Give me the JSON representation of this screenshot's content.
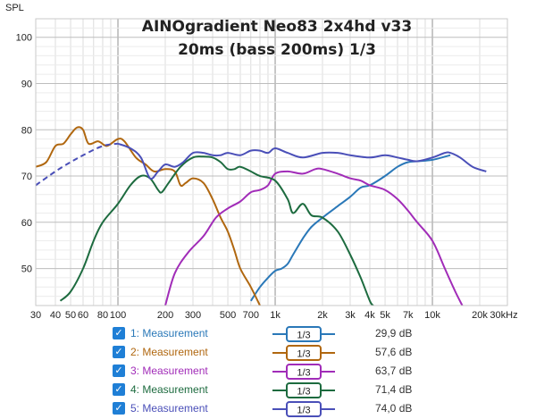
{
  "chart_data": {
    "type": "line",
    "title": "AINOgradient Neo83 2x4hd v33",
    "subtitle": "20ms (bass 200ms) 1/3",
    "ylabel": "SPL",
    "ylim": [
      42,
      104
    ],
    "xlim": [
      30,
      30000
    ],
    "xscale": "log",
    "grid": true,
    "y_ticks": [
      100,
      90,
      80,
      70,
      60,
      50
    ],
    "x_ticks": [
      {
        "v": 30,
        "label": "30"
      },
      {
        "v": 40,
        "label": "40"
      },
      {
        "v": 50,
        "label": "50"
      },
      {
        "v": 60,
        "label": "60"
      },
      {
        "v": 80,
        "label": "80"
      },
      {
        "v": 100,
        "label": "100"
      },
      {
        "v": 200,
        "label": "200"
      },
      {
        "v": 300,
        "label": "300"
      },
      {
        "v": 500,
        "label": "500"
      },
      {
        "v": 700,
        "label": "700"
      },
      {
        "v": 1000,
        "label": "1k"
      },
      {
        "v": 2000,
        "label": "2k"
      },
      {
        "v": 3000,
        "label": "3k"
      },
      {
        "v": 4000,
        "label": "4k"
      },
      {
        "v": 5000,
        "label": "5k"
      },
      {
        "v": 7000,
        "label": "7k"
      },
      {
        "v": 10000,
        "label": "10k"
      },
      {
        "v": 20000,
        "label": "20k"
      },
      {
        "v": 30000,
        "label": "30kHz"
      }
    ],
    "series": [
      {
        "name": "1: Measurement",
        "color": "#2a78b8",
        "smoothing": "1/3",
        "level": "29,9 dB",
        "points": [
          [
            700,
            43
          ],
          [
            800,
            46
          ],
          [
            900,
            48
          ],
          [
            1000,
            49.5
          ],
          [
            1100,
            50
          ],
          [
            1200,
            51
          ],
          [
            1300,
            53
          ],
          [
            1500,
            56.5
          ],
          [
            1700,
            59
          ],
          [
            2000,
            61
          ],
          [
            2500,
            63.5
          ],
          [
            3000,
            65.5
          ],
          [
            3500,
            67.5
          ],
          [
            4000,
            68
          ],
          [
            5000,
            70
          ],
          [
            6000,
            72
          ],
          [
            7000,
            73
          ],
          [
            8000,
            73.2
          ],
          [
            10000,
            73.5
          ],
          [
            13000,
            74.5
          ]
        ]
      },
      {
        "name": "2: Measurement",
        "color": "#b0670f",
        "smoothing": "1/3",
        "level": "57,6 dB",
        "points": [
          [
            30,
            72
          ],
          [
            35,
            73
          ],
          [
            40,
            76.5
          ],
          [
            45,
            77
          ],
          [
            50,
            79
          ],
          [
            55,
            80.5
          ],
          [
            60,
            80
          ],
          [
            65,
            77
          ],
          [
            75,
            77.5
          ],
          [
            85,
            76.5
          ],
          [
            100,
            78
          ],
          [
            110,
            77.5
          ],
          [
            130,
            74
          ],
          [
            150,
            72.5
          ],
          [
            170,
            71
          ],
          [
            200,
            71.5
          ],
          [
            230,
            71
          ],
          [
            250,
            68
          ],
          [
            270,
            68.5
          ],
          [
            300,
            69.5
          ],
          [
            350,
            68.5
          ],
          [
            400,
            65
          ],
          [
            450,
            61
          ],
          [
            500,
            58
          ],
          [
            550,
            54
          ],
          [
            600,
            50
          ],
          [
            700,
            46
          ],
          [
            800,
            42
          ]
        ]
      },
      {
        "name": "3: Measurement",
        "color": "#a12cb8",
        "smoothing": "1/3",
        "level": "63,7 dB",
        "points": [
          [
            200,
            42
          ],
          [
            230,
            49
          ],
          [
            280,
            53.5
          ],
          [
            350,
            57
          ],
          [
            420,
            61
          ],
          [
            500,
            63
          ],
          [
            600,
            64.5
          ],
          [
            700,
            66.5
          ],
          [
            800,
            67
          ],
          [
            900,
            68
          ],
          [
            1000,
            70.5
          ],
          [
            1200,
            71
          ],
          [
            1500,
            70.5
          ],
          [
            1800,
            71.5
          ],
          [
            2000,
            71.5
          ],
          [
            2500,
            70.5
          ],
          [
            3000,
            69.5
          ],
          [
            3500,
            69
          ],
          [
            4000,
            68
          ],
          [
            5000,
            67
          ],
          [
            6000,
            65
          ],
          [
            7000,
            62.5
          ],
          [
            8000,
            60
          ],
          [
            10000,
            56
          ],
          [
            12000,
            50
          ],
          [
            14000,
            45
          ],
          [
            15500,
            42
          ]
        ]
      },
      {
        "name": "4: Measurement",
        "color": "#1d6b3f",
        "smoothing": "1/3",
        "level": "71,4 dB",
        "points": [
          [
            43,
            43
          ],
          [
            50,
            45
          ],
          [
            60,
            50
          ],
          [
            70,
            56
          ],
          [
            80,
            60
          ],
          [
            100,
            64
          ],
          [
            120,
            68
          ],
          [
            140,
            70
          ],
          [
            160,
            69.5
          ],
          [
            180,
            67
          ],
          [
            190,
            66.5
          ],
          [
            210,
            68.5
          ],
          [
            250,
            72
          ],
          [
            300,
            74
          ],
          [
            350,
            74.2
          ],
          [
            400,
            74
          ],
          [
            450,
            73
          ],
          [
            500,
            71.5
          ],
          [
            550,
            71.5
          ],
          [
            600,
            72
          ],
          [
            700,
            71
          ],
          [
            800,
            70
          ],
          [
            1000,
            69
          ],
          [
            1200,
            65
          ],
          [
            1300,
            62
          ],
          [
            1500,
            64
          ],
          [
            1700,
            61.5
          ],
          [
            2000,
            61
          ],
          [
            2500,
            58
          ],
          [
            3000,
            53
          ],
          [
            3500,
            48
          ],
          [
            4000,
            43
          ],
          [
            4200,
            42
          ]
        ]
      },
      {
        "name": "5: Measurement",
        "color": "#4a4fb8",
        "smoothing": "1/3",
        "level": "74,0 dB",
        "points": [
          [
            30,
            68
          ],
          [
            40,
            71
          ],
          [
            50,
            73
          ],
          [
            60,
            74.5
          ],
          [
            80,
            76.5
          ],
          [
            100,
            77
          ],
          [
            120,
            76
          ],
          [
            140,
            74
          ],
          [
            160,
            69.5
          ],
          [
            180,
            71
          ],
          [
            200,
            72.5
          ],
          [
            230,
            72
          ],
          [
            260,
            73
          ],
          [
            300,
            75
          ],
          [
            350,
            75
          ],
          [
            400,
            74.5
          ],
          [
            450,
            74.5
          ],
          [
            500,
            75
          ],
          [
            600,
            74.5
          ],
          [
            700,
            75.5
          ],
          [
            800,
            75.5
          ],
          [
            900,
            75
          ],
          [
            1000,
            76
          ],
          [
            1200,
            75
          ],
          [
            1500,
            74
          ],
          [
            2000,
            75
          ],
          [
            2500,
            75
          ],
          [
            3000,
            74.5
          ],
          [
            4000,
            74
          ],
          [
            5000,
            74.5
          ],
          [
            6000,
            74
          ],
          [
            7000,
            73.5
          ],
          [
            8000,
            73.2
          ],
          [
            10000,
            74
          ],
          [
            12000,
            75
          ],
          [
            13000,
            75
          ],
          [
            15000,
            74
          ],
          [
            18000,
            72
          ],
          [
            22000,
            71
          ]
        ]
      }
    ],
    "dashed_bass_extension": {
      "series": 5,
      "max_freq": 100
    }
  }
}
